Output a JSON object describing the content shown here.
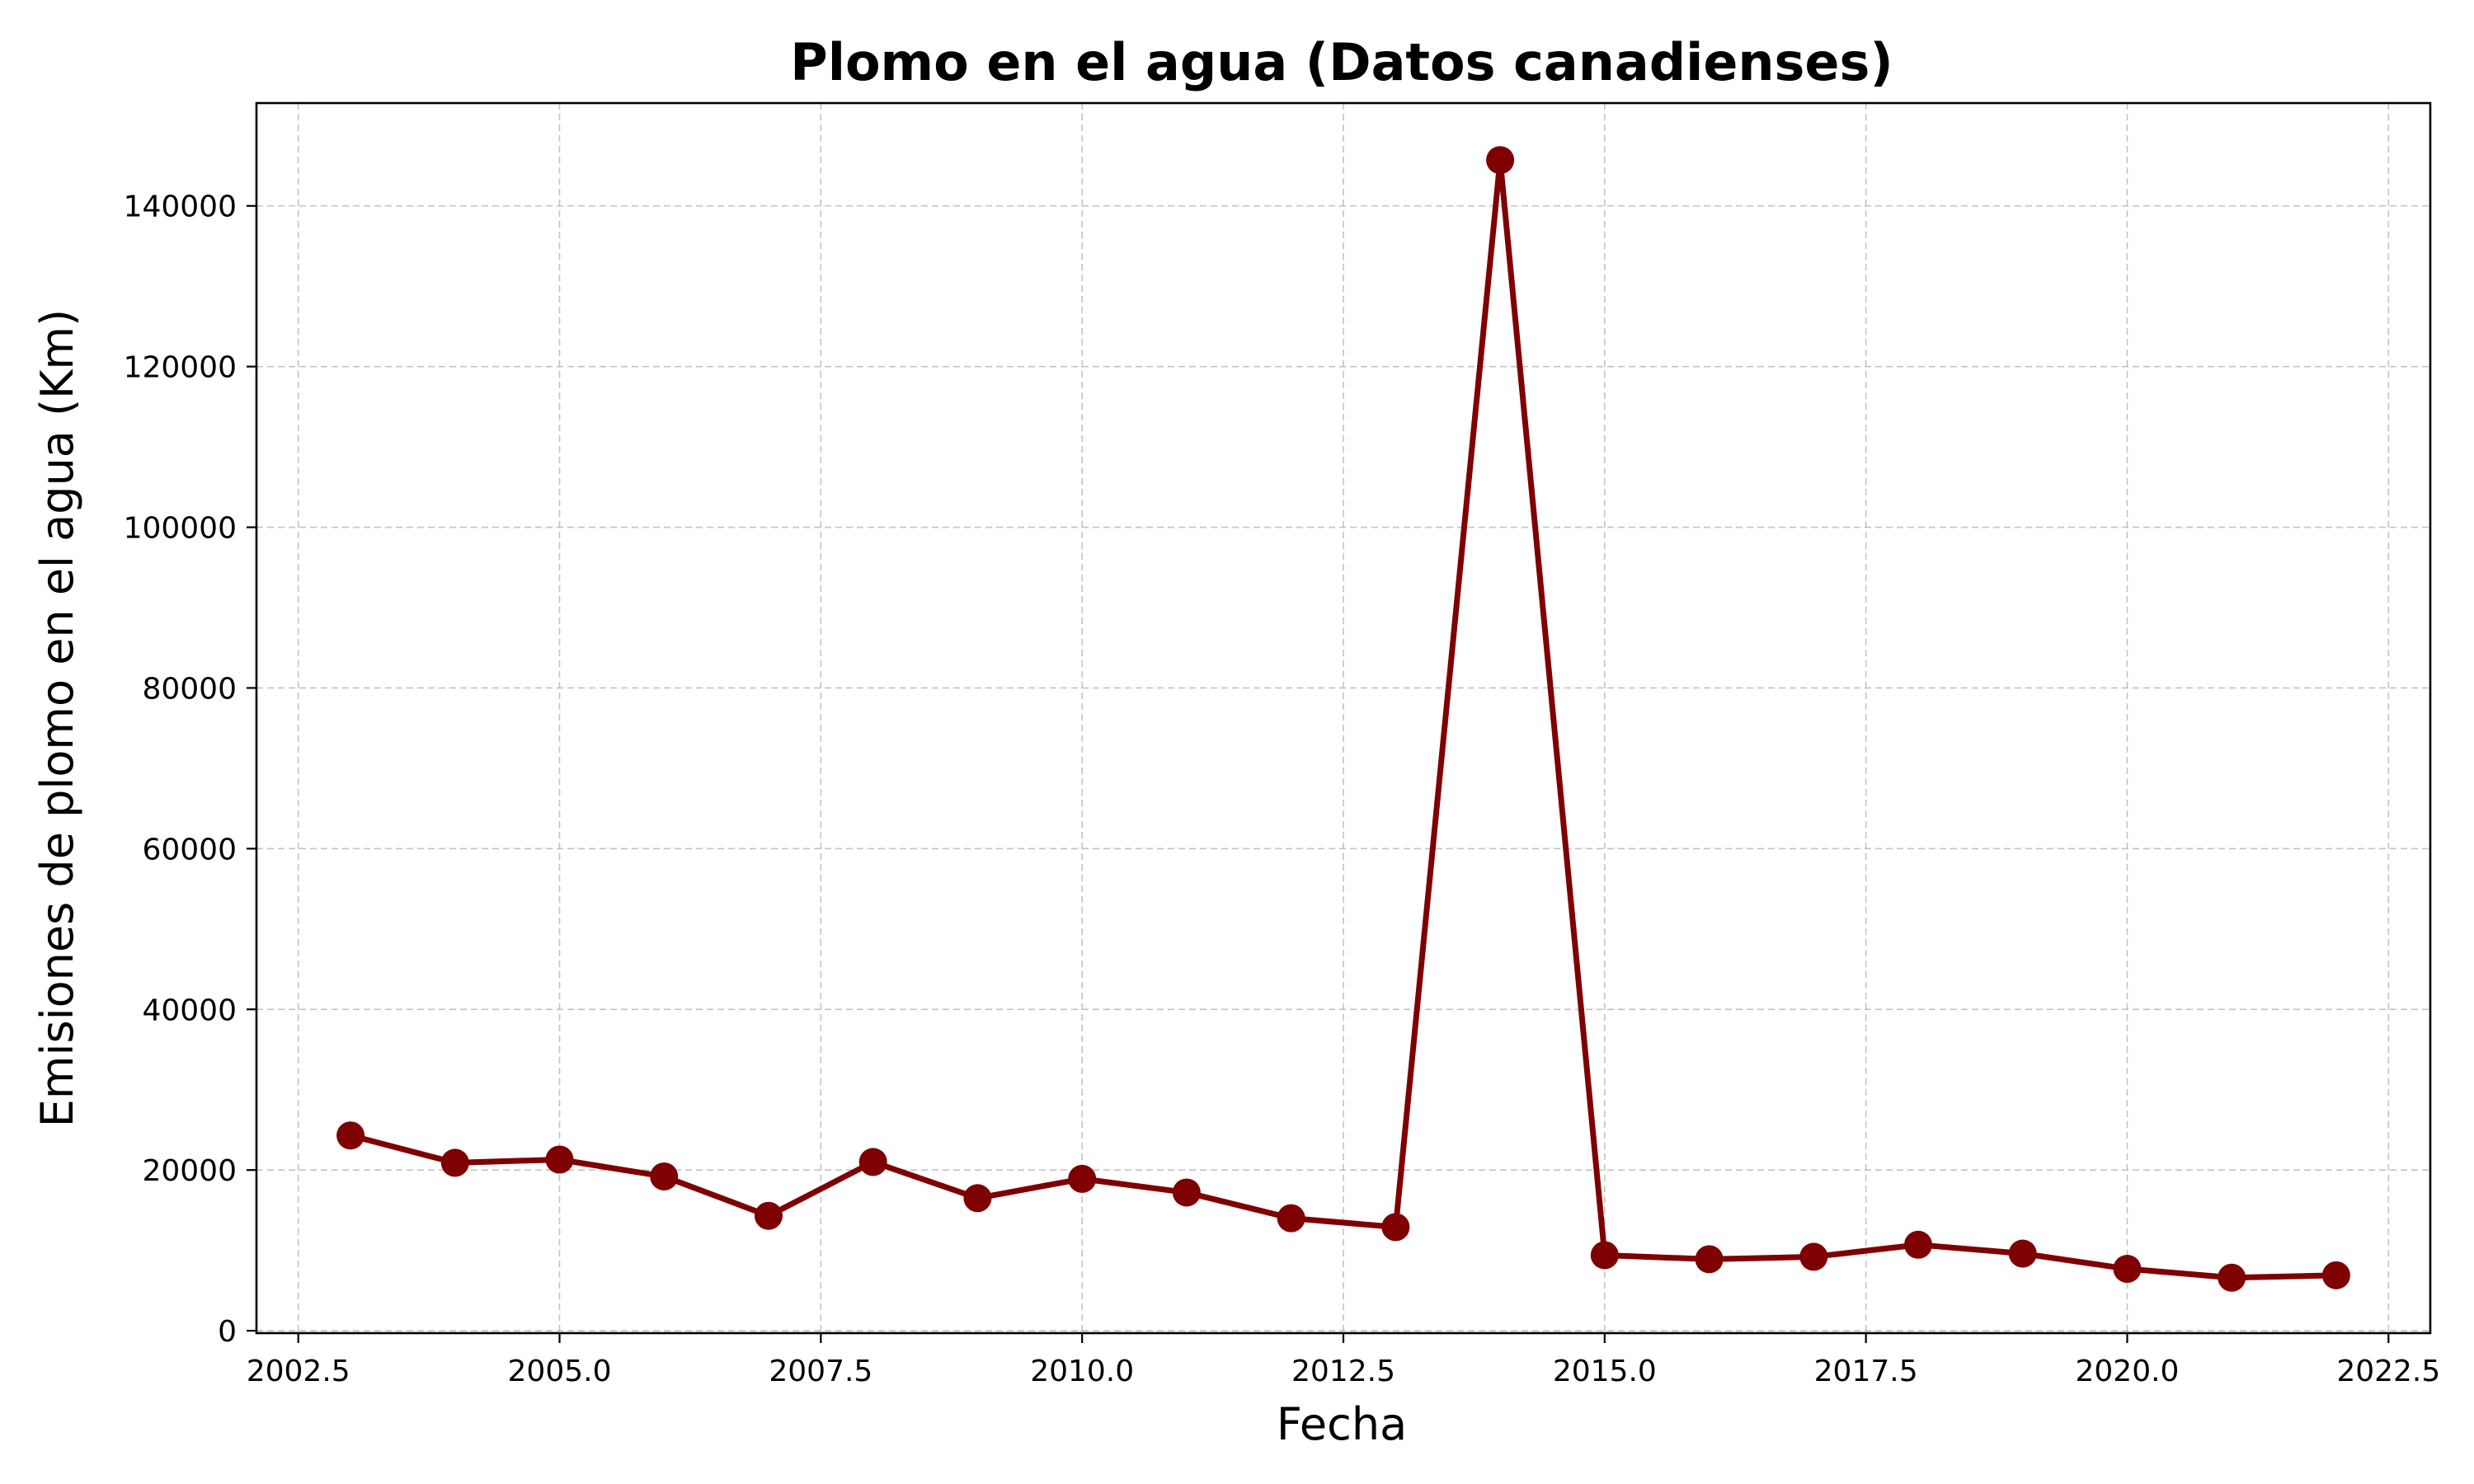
{
  "chart_data": {
    "type": "line",
    "title": "Plomo en el agua (Datos canadienses)",
    "xlabel": "Fecha",
    "ylabel": "Emisiones de plomo en el agua (Km)",
    "xlim": [
      2002.1,
      2022.9
    ],
    "ylim": [
      -300,
      152800
    ],
    "x_ticks": [
      2002.5,
      2005.0,
      2007.5,
      2010.0,
      2012.5,
      2015.0,
      2017.5,
      2020.0,
      2022.5
    ],
    "x_tick_labels": [
      "2002.5",
      "2005.0",
      "2007.5",
      "2010.0",
      "2012.5",
      "2015.0",
      "2017.5",
      "2020.0",
      "2022.5"
    ],
    "y_ticks": [
      0,
      20000,
      40000,
      60000,
      80000,
      100000,
      120000,
      140000
    ],
    "y_tick_labels": [
      "0",
      "20000",
      "40000",
      "60000",
      "80000",
      "100000",
      "120000",
      "140000"
    ],
    "grid": true,
    "color": "#7f0000",
    "series": [
      {
        "x": [
          2003,
          2004,
          2005,
          2006,
          2007,
          2008,
          2009,
          2010,
          2011,
          2012,
          2013,
          2014,
          2015,
          2016,
          2017,
          2018,
          2019,
          2020,
          2021,
          2022
        ],
        "values": [
          24300,
          20900,
          21300,
          19200,
          14300,
          21000,
          16500,
          18900,
          17200,
          14000,
          12900,
          145700,
          9400,
          8900,
          9200,
          10700,
          9600,
          7700,
          6600,
          6900
        ]
      }
    ]
  }
}
